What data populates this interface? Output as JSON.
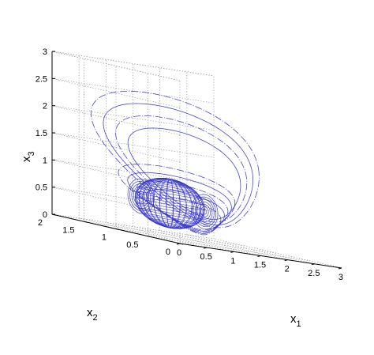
{
  "chart_data": {
    "type": "line",
    "projection": "3d",
    "xlabel": {
      "base": "x",
      "sub": "1"
    },
    "ylabel": {
      "base": "x",
      "sub": "2"
    },
    "zlabel": {
      "base": "x",
      "sub": "3"
    },
    "xlim": [
      0,
      3
    ],
    "ylim": [
      0,
      2
    ],
    "zlim": [
      0,
      3
    ],
    "x_ticks": [
      "0",
      "0.5",
      "1",
      "1.5",
      "2",
      "2.5",
      "3"
    ],
    "y_ticks": [
      "0",
      "0.5",
      "1",
      "1.5",
      "2"
    ],
    "z_ticks": [
      "0",
      "0.5",
      "1",
      "1.5",
      "2",
      "2.5",
      "3"
    ],
    "grid": true,
    "grid_style": "dotted",
    "series_color": "#3333cc",
    "series": [
      {
        "kind": "large-outer-loops",
        "center": [
          1.25,
          1.0,
          1.45
        ],
        "radius": [
          1.4,
          0.5,
          1.1
        ],
        "count": 4
      },
      {
        "kind": "inner-loops",
        "center": [
          1.25,
          1.0,
          0.75
        ],
        "radius": [
          0.95,
          0.3,
          0.5
        ],
        "count": 5
      },
      {
        "kind": "dense-ellipsoid",
        "center": [
          1.0,
          1.0,
          0.62
        ],
        "radius": [
          0.5,
          0.35,
          0.45
        ]
      }
    ]
  }
}
